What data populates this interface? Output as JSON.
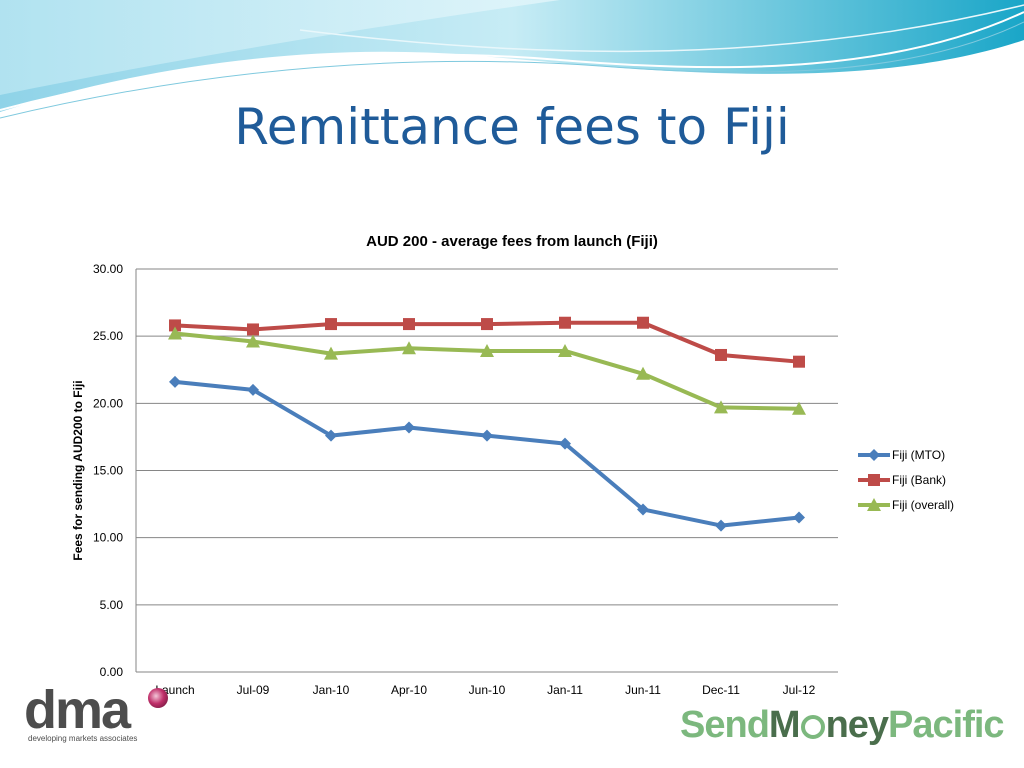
{
  "slide": {
    "title": "Remittance fees to Fiji"
  },
  "logos": {
    "dma_word": "dma",
    "dma_sub": "developing markets associates",
    "smp_text": "SendMoneyPacific",
    "smp_part1": "Send",
    "smp_part2": "M",
    "smp_part3": "ney",
    "smp_part4": "Pacific"
  },
  "colors": {
    "title": "#1f5b99",
    "mto": "#4a7ebb",
    "bank": "#be4b48",
    "overall": "#98b954",
    "smp_green": "#7cb87e",
    "smp_dark": "#4a6e4c"
  },
  "chart_data": {
    "type": "line",
    "title": "AUD 200 - average fees from launch (Fiji)",
    "ylabel": "Fees for sending AUD200 to Fiji",
    "xlabel": "",
    "categories": [
      "Launch",
      "Jul-09",
      "Jan-10",
      "Apr-10",
      "Jun-10",
      "Jan-11",
      "Jun-11",
      "Dec-11",
      "Jul-12"
    ],
    "ylim": [
      0,
      30
    ],
    "yticks": [
      "0.00",
      "5.00",
      "10.00",
      "15.00",
      "20.00",
      "25.00",
      "30.00"
    ],
    "grid": true,
    "legend_position": "right",
    "series": [
      {
        "name": "Fiji (MTO)",
        "marker": "diamond",
        "color": "#4a7ebb",
        "values": [
          21.6,
          21.0,
          17.6,
          18.2,
          17.6,
          17.0,
          12.1,
          10.9,
          11.5
        ]
      },
      {
        "name": "Fiji (Bank)",
        "marker": "square",
        "color": "#be4b48",
        "values": [
          25.8,
          25.5,
          25.9,
          25.9,
          25.9,
          26.0,
          26.0,
          23.6,
          23.1
        ]
      },
      {
        "name": "Fiji (overall)",
        "marker": "triangle",
        "color": "#98b954",
        "values": [
          25.2,
          24.6,
          23.7,
          24.1,
          23.9,
          23.9,
          22.2,
          19.7,
          19.6
        ]
      }
    ]
  }
}
